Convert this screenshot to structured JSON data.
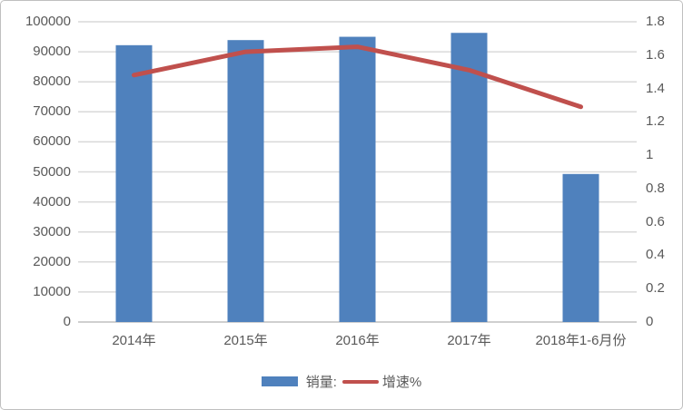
{
  "chart_data": {
    "type": "bar",
    "subtype": "bar-line-combo",
    "title": "",
    "categories": [
      "2014年",
      "2015年",
      "2016年",
      "2017年",
      "2018年1-6月份"
    ],
    "series": [
      {
        "name": "销量:",
        "type": "bar",
        "axis": "left",
        "color": "#4F81BD",
        "values": [
          92200,
          93900,
          95000,
          96300,
          49300
        ]
      },
      {
        "name": "增速%",
        "type": "line",
        "axis": "right",
        "color": "#C0504D",
        "values": [
          1.48,
          1.62,
          1.65,
          1.51,
          1.29
        ]
      }
    ],
    "left_axis": {
      "min": 0,
      "max": 100000,
      "step": 10000,
      "ticks": [
        "100000",
        "90000",
        "80000",
        "70000",
        "60000",
        "50000",
        "40000",
        "30000",
        "20000",
        "10000",
        "0"
      ]
    },
    "right_axis": {
      "min": 0,
      "max": 1.8,
      "step": 0.2,
      "ticks": [
        "1.8",
        "1.6",
        "1.4",
        "1.2",
        "1",
        "0.8",
        "0.6",
        "0.4",
        "0.2",
        "0"
      ]
    },
    "grid": true,
    "legend_position": "bottom"
  },
  "colors": {
    "bar": "#4F81BD",
    "line": "#C0504D",
    "gridline": "#D9D9D9",
    "axis_line": "#CFCFCF",
    "tick_text": "#595959",
    "frame_border": "#BFBFBF",
    "background": "#FFFFFF"
  }
}
